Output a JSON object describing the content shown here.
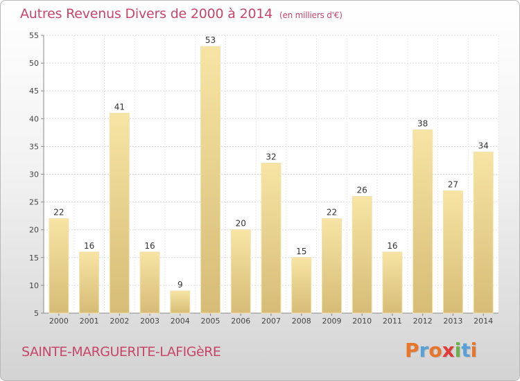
{
  "title": "Autres Revenus Divers de 2000 à 2014",
  "subtitle": "(en milliers d'€)",
  "commune": "SAINTE-MARGUERITE-LAFIGèRE",
  "logo_text": "Proxiti",
  "colors": {
    "title": "#c8456a",
    "bar_light": "#f6e3a3",
    "bar_dark": "#d8be78",
    "logo_letters": [
      "#e8752a",
      "#5aa0d8",
      "#e8752a",
      "#e23b3b",
      "#6ab04c",
      "#5aa0d8",
      "#e8752a"
    ]
  },
  "chart_data": {
    "type": "bar",
    "title": "Autres Revenus Divers de 2000 à 2014",
    "subtitle": "(en milliers d'€)",
    "categories": [
      "2000",
      "2001",
      "2002",
      "2003",
      "2004",
      "2005",
      "2006",
      "2007",
      "2008",
      "2009",
      "2010",
      "2011",
      "2012",
      "2013",
      "2014"
    ],
    "values": [
      22,
      16,
      41,
      16,
      9,
      53,
      20,
      32,
      15,
      22,
      26,
      16,
      38,
      27,
      34
    ],
    "ylim": [
      5,
      55
    ],
    "yticks": [
      5,
      10,
      15,
      20,
      25,
      30,
      35,
      40,
      45,
      50,
      55
    ],
    "grid": true,
    "data_labels": true
  }
}
